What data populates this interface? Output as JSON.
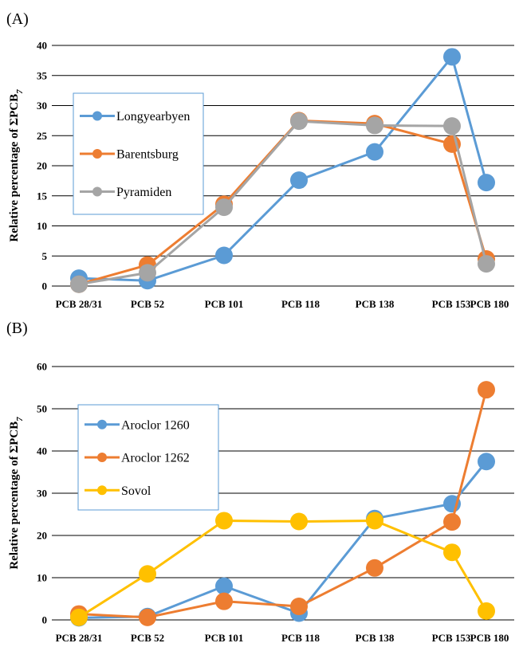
{
  "chart_data": [
    {
      "panel": "(A)",
      "type": "line",
      "categories": [
        "PCB 28/31",
        "PCB 52",
        "PCB 101",
        "PCB 118",
        "PCB 138",
        "PCB 153",
        "PCB 180"
      ],
      "ylabel": "Relative percentage of ΣPCB",
      "ylabel_sub": "7",
      "ylim": [
        0,
        40
      ],
      "yticks": [
        0,
        5,
        10,
        15,
        20,
        25,
        30,
        35,
        40
      ],
      "grid": true,
      "legend_position": "left-middle",
      "series": [
        {
          "name": "Longyearbyen",
          "color": "#5B9BD5",
          "values": [
            1.3,
            0.9,
            5.1,
            17.6,
            22.3,
            38.1,
            17.2
          ]
        },
        {
          "name": "Barentsburg",
          "color": "#ED7D31",
          "values": [
            0.3,
            3.5,
            13.6,
            27.5,
            27.0,
            23.6,
            4.5
          ]
        },
        {
          "name": "Pyramiden",
          "color": "#A5A5A5",
          "values": [
            0.3,
            2.2,
            13.1,
            27.4,
            26.7,
            26.6,
            3.7
          ]
        }
      ]
    },
    {
      "panel": "(B)",
      "type": "line",
      "categories": [
        "PCB 28/31",
        "PCB 52",
        "PCB 101",
        "PCB 118",
        "PCB 138",
        "PCB 153",
        "PCB 180"
      ],
      "ylabel": "Relative  percentage of ΣPCB",
      "ylabel_sub": "7",
      "ylim": [
        0,
        60
      ],
      "yticks": [
        0,
        10,
        20,
        30,
        40,
        50,
        60
      ],
      "grid": true,
      "legend_position": "left-middle",
      "series": [
        {
          "name": "Aroclor 1260",
          "color": "#5B9BD5",
          "values": [
            0.5,
            0.8,
            8.0,
            1.6,
            24.0,
            27.5,
            37.5
          ]
        },
        {
          "name": "Aroclor 1262",
          "color": "#ED7D31",
          "values": [
            1.4,
            0.6,
            4.4,
            3.2,
            12.3,
            23.2,
            54.5
          ]
        },
        {
          "name": "Sovol",
          "color": "#FFC000",
          "values": [
            0.6,
            10.9,
            23.5,
            23.3,
            23.5,
            16.0,
            2.1
          ]
        }
      ]
    }
  ]
}
